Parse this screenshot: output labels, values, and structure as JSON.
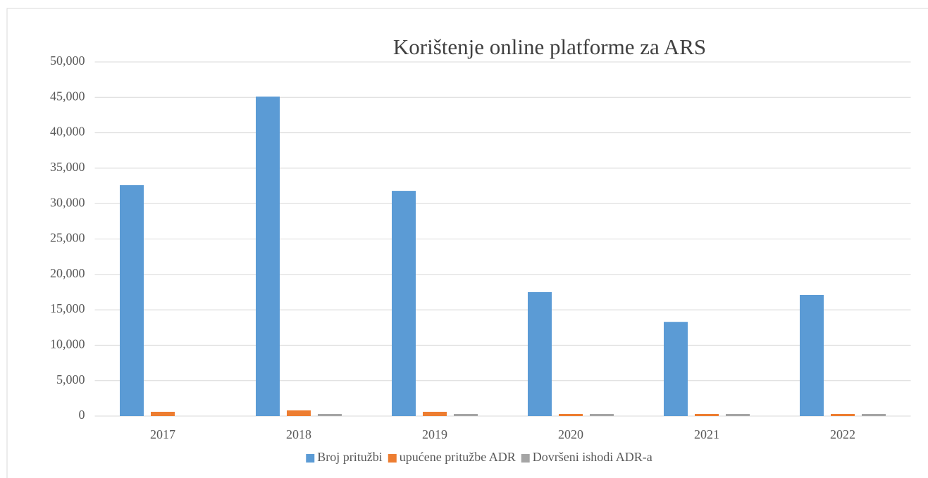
{
  "chart_data": {
    "type": "bar",
    "title": "Korištenje online platforme za ARS",
    "categories": [
      "2017",
      "2018",
      "2019",
      "2020",
      "2021",
      "2022"
    ],
    "series": [
      {
        "name": "Broj pritužbi",
        "color": "#5b9bd5",
        "values": [
          32600,
          45100,
          31800,
          17500,
          13300,
          17100
        ]
      },
      {
        "name": "upućene pritužbe ADR",
        "color": "#ed7d31",
        "values": [
          600,
          800,
          600,
          300,
          300,
          300
        ]
      },
      {
        "name": "Dovršeni ishodi ADR-a",
        "color": "#a5a5a5",
        "values": [
          null,
          300,
          300,
          300,
          300,
          300
        ]
      }
    ],
    "ylim": [
      0,
      50000
    ],
    "yticks": [
      0,
      {
        "value": 5000,
        "label": "5,000"
      },
      {
        "value": 10000,
        "label": "10,000"
      },
      {
        "value": 15000,
        "label": "15,000"
      },
      {
        "value": 20000,
        "label": "20,000"
      },
      {
        "value": 25000,
        "label": "25,000"
      },
      {
        "value": 30000,
        "label": "30,000"
      },
      {
        "value": 35000,
        "label": "35,000"
      },
      {
        "value": 40000,
        "label": "40,000"
      },
      {
        "value": 45000,
        "label": "45,000"
      },
      {
        "value": 50000,
        "label": "50,000"
      }
    ],
    "grid": true,
    "legend": "bottom"
  }
}
